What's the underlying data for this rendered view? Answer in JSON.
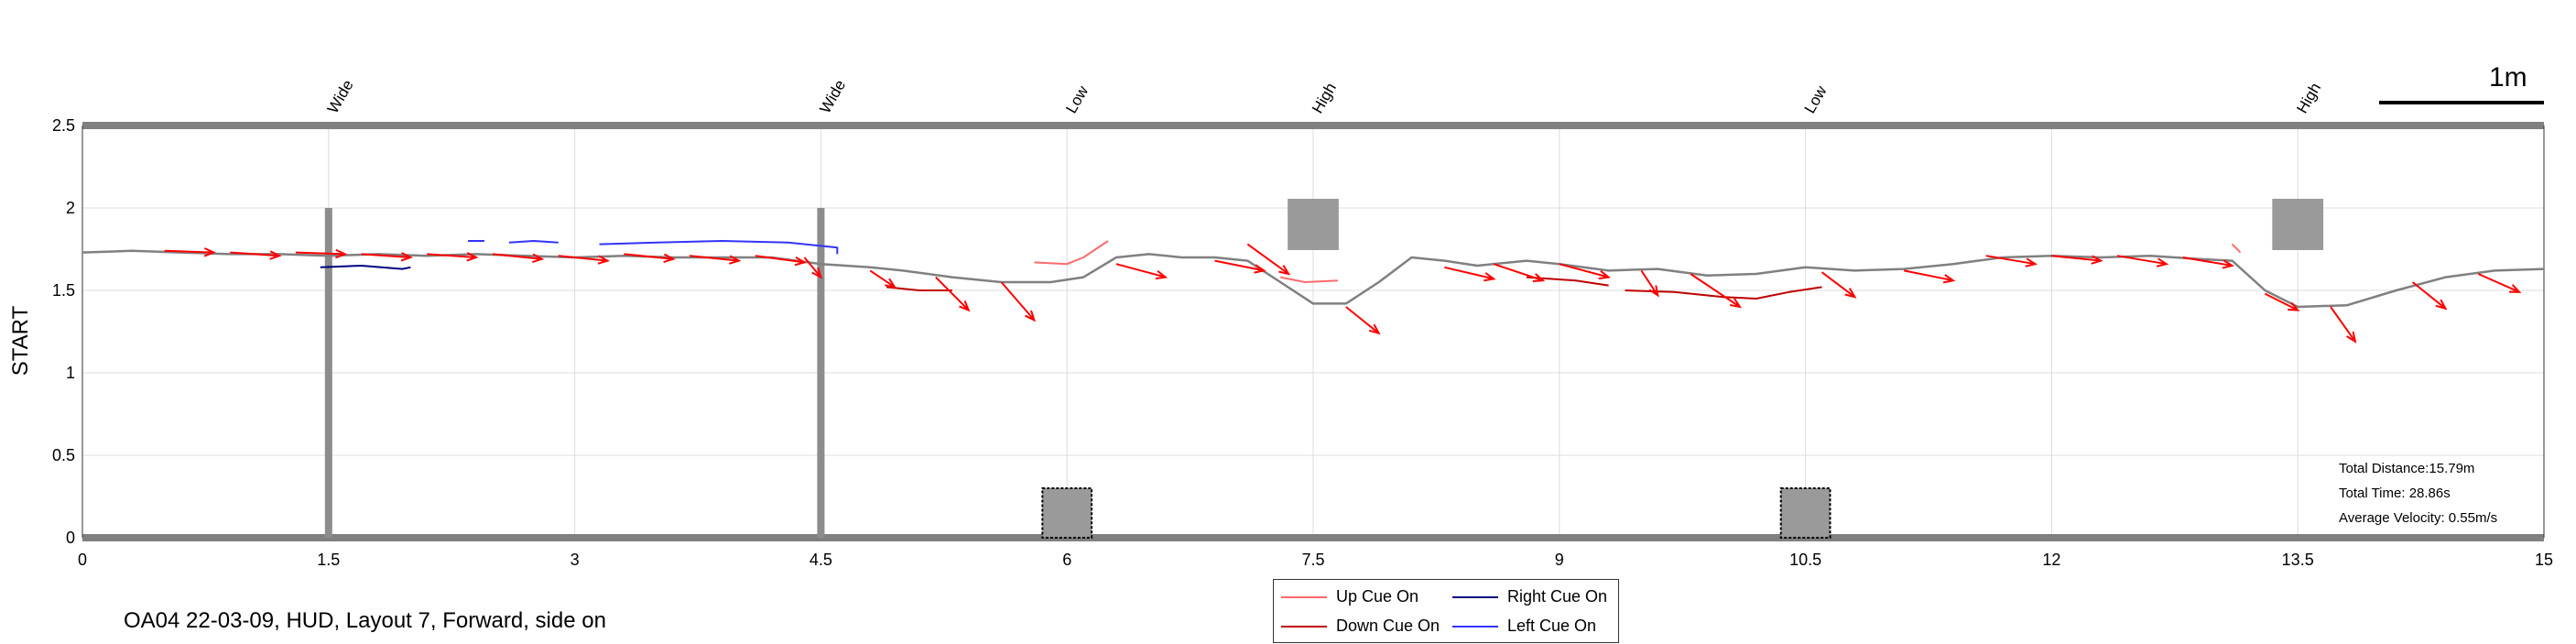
{
  "chart_data": {
    "type": "line",
    "title": "",
    "xlabel": "",
    "ylabel": "START",
    "xlim": [
      0,
      15
    ],
    "ylim": [
      0,
      2.5
    ],
    "x_ticks": [
      "0",
      "1.5",
      "3",
      "4.5",
      "6",
      "7.5",
      "9",
      "10.5",
      "12",
      "13.5",
      "15"
    ],
    "y_ticks": [
      "0",
      "0.5",
      "1",
      "1.5",
      "2",
      "2.5"
    ],
    "grid": true,
    "legend_position": "bottom-center",
    "top_labels": [
      {
        "x": 1.5,
        "text": "Wide"
      },
      {
        "x": 4.5,
        "text": "Wide"
      },
      {
        "x": 6.0,
        "text": "Low"
      },
      {
        "x": 7.5,
        "text": "High"
      },
      {
        "x": 10.5,
        "text": "Low"
      },
      {
        "x": 13.5,
        "text": "High"
      }
    ],
    "scale_bar_label": "1m",
    "obstacles": [
      {
        "type": "wide",
        "x": 1.5,
        "y_range": [
          0,
          2.0
        ]
      },
      {
        "type": "wide",
        "x": 4.5,
        "y_range": [
          0,
          2.0
        ]
      },
      {
        "type": "low",
        "x_range": [
          5.85,
          6.15
        ],
        "y_range": [
          0,
          0.3
        ]
      },
      {
        "type": "low",
        "x_range": [
          10.35,
          10.65
        ],
        "y_range": [
          0,
          0.3
        ]
      },
      {
        "type": "high",
        "x_range": [
          7.35,
          7.65
        ],
        "y_range": [
          1.75,
          2.05
        ]
      },
      {
        "type": "high",
        "x_range": [
          13.35,
          13.65
        ],
        "y_range": [
          1.75,
          2.05
        ]
      }
    ],
    "series": [
      {
        "name": "",
        "color": "#808080",
        "points": [
          [
            0,
            1.73
          ],
          [
            0.3,
            1.74
          ],
          [
            0.6,
            1.73
          ],
          [
            0.9,
            1.72
          ],
          [
            1.2,
            1.72
          ],
          [
            1.5,
            1.71
          ],
          [
            1.8,
            1.72
          ],
          [
            2.1,
            1.71
          ],
          [
            2.4,
            1.72
          ],
          [
            2.7,
            1.71
          ],
          [
            3.0,
            1.7
          ],
          [
            3.3,
            1.71
          ],
          [
            3.6,
            1.7
          ],
          [
            3.9,
            1.7
          ],
          [
            4.2,
            1.7
          ],
          [
            4.5,
            1.66
          ],
          [
            4.8,
            1.64
          ],
          [
            5.0,
            1.62
          ],
          [
            5.3,
            1.58
          ],
          [
            5.6,
            1.55
          ],
          [
            5.9,
            1.55
          ],
          [
            6.1,
            1.58
          ],
          [
            6.3,
            1.7
          ],
          [
            6.5,
            1.72
          ],
          [
            6.7,
            1.7
          ],
          [
            6.9,
            1.7
          ],
          [
            7.1,
            1.68
          ],
          [
            7.3,
            1.55
          ],
          [
            7.5,
            1.42
          ],
          [
            7.7,
            1.42
          ],
          [
            7.9,
            1.55
          ],
          [
            8.1,
            1.7
          ],
          [
            8.3,
            1.68
          ],
          [
            8.5,
            1.65
          ],
          [
            8.8,
            1.68
          ],
          [
            9.0,
            1.66
          ],
          [
            9.3,
            1.62
          ],
          [
            9.6,
            1.63
          ],
          [
            9.9,
            1.59
          ],
          [
            10.2,
            1.6
          ],
          [
            10.5,
            1.64
          ],
          [
            10.8,
            1.62
          ],
          [
            11.1,
            1.63
          ],
          [
            11.4,
            1.66
          ],
          [
            11.7,
            1.7
          ],
          [
            12.0,
            1.71
          ],
          [
            12.3,
            1.7
          ],
          [
            12.6,
            1.71
          ],
          [
            12.9,
            1.69
          ],
          [
            13.1,
            1.68
          ],
          [
            13.3,
            1.5
          ],
          [
            13.5,
            1.4
          ],
          [
            13.8,
            1.41
          ],
          [
            14.1,
            1.5
          ],
          [
            14.4,
            1.58
          ],
          [
            14.7,
            1.62
          ],
          [
            15.0,
            1.63
          ]
        ]
      },
      {
        "name": "Up Cue On",
        "color": "#ff6b6b",
        "segments": [
          [
            [
              5.8,
              1.67
            ],
            [
              6.0,
              1.66
            ],
            [
              6.1,
              1.7
            ],
            [
              6.25,
              1.8
            ]
          ],
          [
            [
              7.3,
              1.58
            ],
            [
              7.45,
              1.55
            ],
            [
              7.65,
              1.56
            ]
          ],
          [
            [
              13.1,
              1.78
            ],
            [
              13.15,
              1.73
            ]
          ]
        ]
      },
      {
        "name": "Down Cue On",
        "color": "#c00000",
        "segments": [
          [
            [
              4.9,
              1.52
            ],
            [
              5.1,
              1.5
            ],
            [
              5.3,
              1.5
            ]
          ],
          [
            [
              8.8,
              1.58
            ],
            [
              9.1,
              1.56
            ],
            [
              9.3,
              1.53
            ]
          ],
          [
            [
              9.4,
              1.5
            ],
            [
              9.7,
              1.49
            ],
            [
              10.0,
              1.46
            ],
            [
              10.2,
              1.45
            ],
            [
              10.4,
              1.49
            ],
            [
              10.6,
              1.52
            ]
          ]
        ]
      },
      {
        "name": "Right Cue On",
        "color": "#000080",
        "segments": [
          [
            [
              1.45,
              1.64
            ],
            [
              1.7,
              1.65
            ],
            [
              1.95,
              1.63
            ],
            [
              2.0,
              1.64
            ]
          ]
        ]
      },
      {
        "name": "Left Cue On",
        "color": "#3333ff",
        "segments": [
          [
            [
              2.35,
              1.8
            ],
            [
              2.45,
              1.8
            ]
          ],
          [
            [
              2.6,
              1.79
            ],
            [
              2.75,
              1.8
            ],
            [
              2.9,
              1.79
            ]
          ],
          [
            [
              3.15,
              1.78
            ],
            [
              3.5,
              1.79
            ],
            [
              3.9,
              1.8
            ],
            [
              4.3,
              1.79
            ],
            [
              4.6,
              1.76
            ],
            [
              4.6,
              1.72
            ]
          ]
        ]
      }
    ],
    "arrows": [
      [
        0.5,
        1.74,
        0.8,
        1.73
      ],
      [
        0.9,
        1.73,
        1.2,
        1.71
      ],
      [
        1.3,
        1.73,
        1.6,
        1.72
      ],
      [
        1.7,
        1.72,
        2.0,
        1.7
      ],
      [
        2.1,
        1.72,
        2.4,
        1.7
      ],
      [
        2.5,
        1.72,
        2.8,
        1.69
      ],
      [
        2.9,
        1.71,
        3.2,
        1.68
      ],
      [
        3.3,
        1.72,
        3.6,
        1.69
      ],
      [
        3.7,
        1.71,
        4.0,
        1.68
      ],
      [
        4.1,
        1.71,
        4.4,
        1.67
      ],
      [
        4.4,
        1.7,
        4.5,
        1.58
      ],
      [
        4.8,
        1.62,
        4.95,
        1.52
      ],
      [
        5.2,
        1.58,
        5.4,
        1.38
      ],
      [
        5.6,
        1.55,
        5.8,
        1.32
      ],
      [
        6.3,
        1.66,
        6.6,
        1.58
      ],
      [
        6.9,
        1.68,
        7.2,
        1.62
      ],
      [
        7.1,
        1.78,
        7.35,
        1.6
      ],
      [
        7.7,
        1.4,
        7.9,
        1.24
      ],
      [
        8.3,
        1.64,
        8.6,
        1.57
      ],
      [
        8.6,
        1.66,
        8.9,
        1.56
      ],
      [
        9.0,
        1.66,
        9.3,
        1.58
      ],
      [
        9.5,
        1.62,
        9.6,
        1.47
      ],
      [
        9.8,
        1.6,
        10.1,
        1.4
      ],
      [
        10.6,
        1.61,
        10.8,
        1.46
      ],
      [
        11.1,
        1.62,
        11.4,
        1.56
      ],
      [
        11.6,
        1.71,
        11.9,
        1.66
      ],
      [
        12.0,
        1.71,
        12.3,
        1.68
      ],
      [
        12.4,
        1.71,
        12.7,
        1.66
      ],
      [
        12.8,
        1.7,
        13.1,
        1.65
      ],
      [
        13.3,
        1.48,
        13.5,
        1.38
      ],
      [
        13.7,
        1.4,
        13.85,
        1.19
      ],
      [
        14.2,
        1.55,
        14.4,
        1.39
      ],
      [
        14.6,
        1.6,
        14.85,
        1.49
      ]
    ]
  },
  "legend": {
    "items": [
      {
        "label": "Up Cue On",
        "color": "#ff6b6b"
      },
      {
        "label": "Right Cue On",
        "color": "#000080"
      },
      {
        "label": "Down Cue On",
        "color": "#c00000"
      },
      {
        "label": "Left Cue On",
        "color": "#3333ff"
      }
    ]
  },
  "stats": {
    "distance": "Total Distance:15.79m",
    "time": "Total Time: 28.86s",
    "velocity": "Average Velocity: 0.55m/s"
  },
  "caption": "OA04 22-03-09, HUD, Layout 7, Forward, side on"
}
